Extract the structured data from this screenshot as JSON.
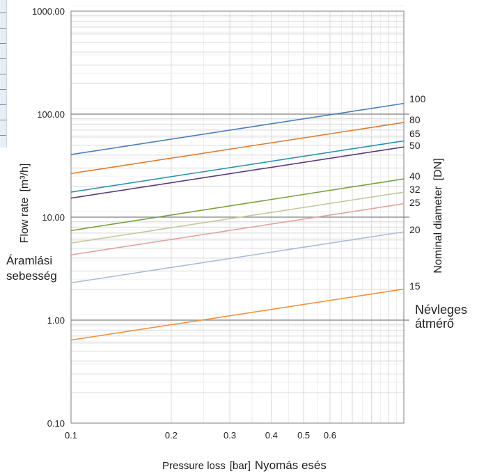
{
  "chart_data": {
    "type": "line",
    "x_scale": "log",
    "y_scale": "log",
    "xlim": [
      0.1,
      1.0
    ],
    "ylim": [
      0.1,
      1000
    ],
    "x_tick_labels": [
      {
        "value": 0.1,
        "label": "0.1"
      },
      {
        "value": 0.2,
        "label": "0.2"
      },
      {
        "value": 0.3,
        "label": "0.3"
      },
      {
        "value": 0.4,
        "label": "0.4"
      },
      {
        "value": 0.5,
        "label": "0.5"
      },
      {
        "value": 0.6,
        "label": "0.6"
      }
    ],
    "y_tick_labels": [
      {
        "value": 0.1,
        "label": "0.10"
      },
      {
        "value": 1,
        "label": "1.00"
      },
      {
        "value": 10,
        "label": "10.00"
      },
      {
        "value": 100,
        "label": "100.00"
      },
      {
        "value": 1000,
        "label": "1000.00"
      }
    ],
    "xlabel": "Pressure loss",
    "xlabel_unit": "[bar]",
    "xlabel_hu": "Nyomás esés",
    "ylabel": "Flow rate",
    "ylabel_unit": "[m³/h]",
    "ylabel_hu_line1": "Áramlási",
    "ylabel_hu_line2": "sebesség",
    "right_label": "Nominal diameter",
    "right_label_unit": "[DN]",
    "right_label_hu_line1": "Névleges",
    "right_label_hu_line2": "átmérő",
    "grid": true,
    "series": [
      {
        "name": "100",
        "color": "#4a7ebb",
        "x": [
          0.1,
          1.0
        ],
        "y": [
          40.5,
          127
        ]
      },
      {
        "name": "80",
        "color": "#e07b2e",
        "x": [
          0.1,
          1.0
        ],
        "y": [
          26.5,
          83
        ]
      },
      {
        "name": "65",
        "color": "#2e93a8",
        "x": [
          0.1,
          1.0
        ],
        "y": [
          17.5,
          55
        ]
      },
      {
        "name": "50",
        "color": "#5b3a7e",
        "x": [
          0.1,
          1.0
        ],
        "y": [
          15.3,
          48
        ]
      },
      {
        "name": "40",
        "color": "#78a040",
        "x": [
          0.1,
          1.0
        ],
        "y": [
          7.4,
          23.5
        ]
      },
      {
        "name": "32",
        "color": "#c5c89a",
        "x": [
          0.1,
          1.0
        ],
        "y": [
          5.6,
          17.5
        ]
      },
      {
        "name": "25",
        "color": "#e0a3a0",
        "x": [
          0.1,
          1.0
        ],
        "y": [
          4.3,
          13.5
        ]
      },
      {
        "name": "20",
        "color": "#a8bcd8",
        "x": [
          0.1,
          1.0
        ],
        "y": [
          2.3,
          7.2
        ]
      },
      {
        "name": "15",
        "color": "#f5913a",
        "x": [
          0.1,
          1.0
        ],
        "y": [
          0.64,
          2.0
        ]
      }
    ],
    "series_label_y": {
      "100": 147,
      "80": 177,
      "65": 197,
      "50": 214,
      "40": 258,
      "32": 277,
      "25": 296,
      "20": 335,
      "15": 416
    }
  }
}
